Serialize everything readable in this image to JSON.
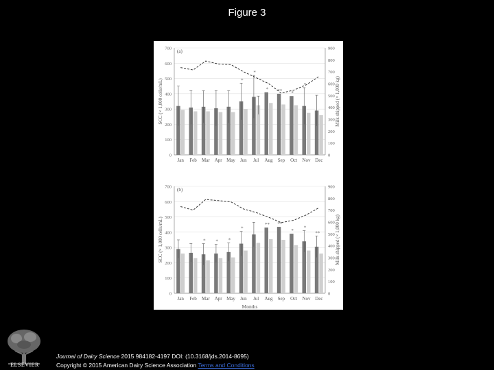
{
  "slide": {
    "title": "Figure 3"
  },
  "footer": {
    "journal": "Journal of Dairy Science",
    "line1_rest": " 2015 984182-4197 DOI: (10.3168/jds.2014-8695)",
    "line2_prefix": "Copyright © 2015 American Dairy Science Association",
    "link": "Terms and Conditions"
  },
  "logo": {
    "name": "ELSEVIER"
  },
  "chart_data": [
    {
      "panel_label": "(a)",
      "type": "bar",
      "categories": [
        "Jan",
        "Feb",
        "Mar",
        "Apr",
        "May",
        "Jun",
        "Jul",
        "Aug",
        "Sep",
        "Oct",
        "Nov",
        "Dec"
      ],
      "ylabel": "SCC (× 1,000 cells/mL)",
      "y2label": "Milk shipped (× 1,000 kg)",
      "ylim": [
        0,
        700
      ],
      "yticks": [
        0,
        100,
        200,
        300,
        400,
        500,
        600,
        700
      ],
      "y2lim": [
        0,
        900
      ],
      "y2ticks": [
        0,
        100,
        200,
        300,
        400,
        500,
        600,
        700,
        800,
        900
      ],
      "series": [
        {
          "style": "dark",
          "values": [
            320,
            310,
            315,
            305,
            315,
            350,
            380,
            410,
            400,
            385,
            320,
            290
          ],
          "err": [
            130,
            110,
            105,
            115,
            105,
            120,
            140,
            0,
            0,
            0,
            120,
            100
          ]
        },
        {
          "style": "light",
          "values": [
            295,
            285,
            285,
            280,
            280,
            300,
            325,
            340,
            330,
            325,
            275,
            260
          ],
          "err": [
            0,
            0,
            0,
            0,
            0,
            0,
            60,
            0,
            0,
            0,
            0,
            0
          ]
        },
        {
          "style": "dashed-line",
          "axis": "secondary",
          "values": [
            735,
            715,
            790,
            765,
            760,
            700,
            650,
            600,
            520,
            545,
            590,
            660
          ]
        }
      ],
      "annotations": [
        "*",
        "*",
        "*",
        "**",
        "*",
        "*"
      ],
      "annotation_months": [
        "Jun",
        "Jul",
        "Aug",
        "Sep",
        "Oct",
        "Nov"
      ]
    },
    {
      "panel_label": "(b)",
      "type": "bar",
      "categories": [
        "Jan",
        "Feb",
        "Mar",
        "Apr",
        "May",
        "Jun",
        "Jul",
        "Aug",
        "Sep",
        "Oct",
        "Nov",
        "Dec"
      ],
      "xlabel": "Months",
      "ylabel": "SCC (× 1,000 cells/mL)",
      "y2label": "Milk shipped (× 1,000 kg)",
      "ylim": [
        0,
        700
      ],
      "yticks": [
        0,
        100,
        200,
        300,
        400,
        500,
        600,
        700
      ],
      "y2lim": [
        0,
        900
      ],
      "y2ticks": [
        0,
        100,
        200,
        300,
        400,
        500,
        600,
        700,
        800,
        900
      ],
      "series": [
        {
          "style": "dark",
          "values": [
            290,
            265,
            255,
            260,
            270,
            325,
            385,
            430,
            435,
            390,
            340,
            305
          ],
          "err": [
            60,
            60,
            70,
            60,
            60,
            80,
            80,
            0,
            0,
            0,
            70,
            70
          ]
        },
        {
          "style": "light",
          "values": [
            260,
            230,
            215,
            230,
            235,
            280,
            330,
            355,
            350,
            315,
            280,
            260
          ],
          "err": [
            0,
            0,
            0,
            0,
            0,
            0,
            0,
            0,
            0,
            0,
            0,
            0
          ]
        },
        {
          "style": "dashed-line",
          "axis": "secondary",
          "values": [
            730,
            700,
            790,
            780,
            770,
            710,
            680,
            640,
            595,
            615,
            660,
            720
          ]
        }
      ],
      "annotations": [
        "*",
        "*",
        "*",
        "*",
        "**",
        "**",
        "*",
        "*",
        "**"
      ],
      "annotation_months": [
        "Mar",
        "Apr",
        "May",
        "Jun",
        "Aug",
        "Sep",
        "Oct",
        "Nov",
        "Dec"
      ]
    }
  ]
}
